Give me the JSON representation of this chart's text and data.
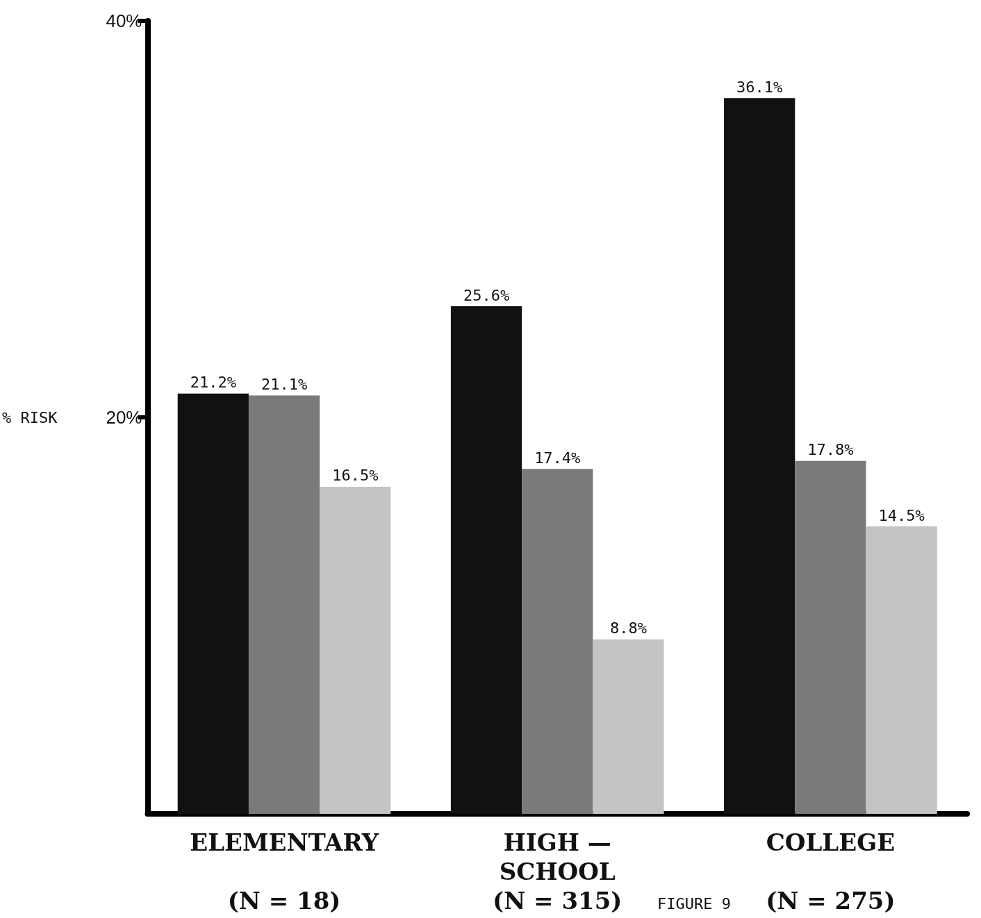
{
  "chart_data": {
    "type": "bar",
    "ylabel": "% RISK",
    "categories": [
      "ELEMENTARY\n\n(N = 18)",
      "HIGH —\nSCHOOL\n(N = 315)",
      "COLLEGE\n\n(N = 275)"
    ],
    "series": [
      {
        "color": "#111111",
        "values": [
          21.2,
          25.6,
          36.1
        ],
        "value_labels": [
          "21.2%",
          "25.6%",
          "36.1%"
        ]
      },
      {
        "color": "#7a7a7a",
        "values": [
          21.1,
          17.4,
          17.8
        ],
        "value_labels": [
          "21.1%",
          "17.4%",
          "17.8%"
        ]
      },
      {
        "color": "#c4c4c4",
        "values": [
          16.5,
          8.8,
          14.5
        ],
        "value_labels": [
          "16.5%",
          "8.8%",
          "14.5%"
        ]
      }
    ],
    "ylim": [
      0,
      40
    ],
    "yticks": [
      {
        "value": 20,
        "label": "20%"
      },
      {
        "value": 40,
        "label": "40%"
      }
    ],
    "grid": false,
    "annotations": [
      "FIGURE 9"
    ]
  }
}
